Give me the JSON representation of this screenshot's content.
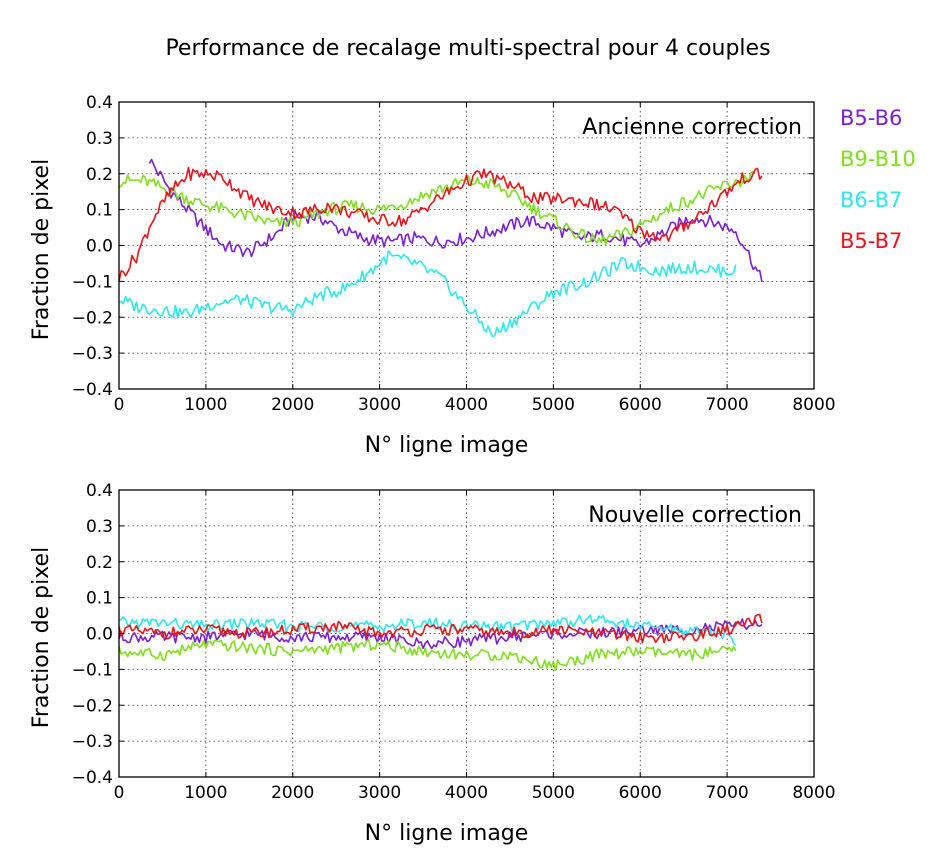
{
  "title": "Performance de recalage multi-spectral pour 4 couples",
  "legend": [
    {
      "name": "B5-B6",
      "color": "#7a1fd1"
    },
    {
      "name": "B9-B10",
      "color": "#7fdf1f"
    },
    {
      "name": "B6-B7",
      "color": "#2ee8ee"
    },
    {
      "name": "B5-B7",
      "color": "#e8141a"
    }
  ],
  "chart_data": [
    {
      "type": "line",
      "annotation": "Ancienne correction",
      "xlabel": "N° ligne image",
      "ylabel": "Fraction de pixel",
      "xlim": [
        0,
        8000
      ],
      "ylim": [
        -0.4,
        0.4
      ],
      "xticks": [
        "0",
        "1000",
        "2000",
        "3000",
        "4000",
        "5000",
        "6000",
        "7000",
        "8000"
      ],
      "yticks": [
        "0.4",
        "0.3",
        "0.2",
        "0.1",
        "0.0",
        "−0.1",
        "−0.2",
        "−0.3",
        "−0.4"
      ],
      "grid": true,
      "series": [
        {
          "name": "B5-B6",
          "color": "#7a1fd1",
          "x": [
            350,
            600,
            900,
            1200,
            1500,
            1800,
            2000,
            2300,
            2500,
            2800,
            3100,
            3400,
            3700,
            4000,
            4300,
            4700,
            5000,
            5300,
            5600,
            6000,
            6300,
            6600,
            6900,
            7100,
            7200,
            7400
          ],
          "y": [
            0.24,
            0.15,
            0.07,
            0.0,
            -0.02,
            0.03,
            0.08,
            0.08,
            0.05,
            0.02,
            0.01,
            0.02,
            0.01,
            0.02,
            0.04,
            0.07,
            0.05,
            0.02,
            0.03,
            0.0,
            0.04,
            0.08,
            0.06,
            0.04,
            0.0,
            -0.1
          ]
        },
        {
          "name": "B9-B10",
          "color": "#7fdf1f",
          "x": [
            0,
            300,
            600,
            900,
            1200,
            1500,
            1800,
            2100,
            2400,
            2700,
            3000,
            3300,
            3600,
            4000,
            4300,
            4600,
            5000,
            5300,
            5500,
            5800,
            6100,
            6400,
            6700,
            7000,
            7300
          ],
          "y": [
            0.18,
            0.18,
            0.15,
            0.12,
            0.1,
            0.08,
            0.06,
            0.07,
            0.1,
            0.11,
            0.1,
            0.12,
            0.15,
            0.18,
            0.17,
            0.13,
            0.07,
            0.03,
            0.01,
            0.03,
            0.07,
            0.11,
            0.14,
            0.17,
            0.19
          ]
        },
        {
          "name": "B6-B7",
          "color": "#2ee8ee",
          "x": [
            0,
            200,
            500,
            800,
            1100,
            1400,
            1700,
            2000,
            2300,
            2600,
            2900,
            3100,
            3400,
            3700,
            4000,
            4300,
            4600,
            5000,
            5400,
            5800,
            6200,
            6600,
            6900,
            7100
          ],
          "y": [
            -0.15,
            -0.17,
            -0.18,
            -0.19,
            -0.16,
            -0.15,
            -0.17,
            -0.18,
            -0.14,
            -0.12,
            -0.07,
            -0.03,
            -0.05,
            -0.09,
            -0.17,
            -0.25,
            -0.2,
            -0.13,
            -0.1,
            -0.05,
            -0.07,
            -0.06,
            -0.07,
            -0.07
          ]
        },
        {
          "name": "B5-B7",
          "color": "#e8141a",
          "x": [
            0,
            200,
            400,
            600,
            800,
            1000,
            1200,
            1500,
            1800,
            2100,
            2400,
            2700,
            3000,
            3300,
            3600,
            4000,
            4200,
            4500,
            4800,
            5100,
            5400,
            5700,
            6000,
            6300,
            6600,
            6900,
            7200,
            7400
          ],
          "y": [
            -0.09,
            -0.03,
            0.08,
            0.15,
            0.2,
            0.2,
            0.19,
            0.13,
            0.1,
            0.09,
            0.11,
            0.09,
            0.07,
            0.07,
            0.12,
            0.18,
            0.2,
            0.17,
            0.13,
            0.13,
            0.12,
            0.1,
            0.04,
            0.02,
            0.07,
            0.13,
            0.19,
            0.2
          ]
        }
      ]
    },
    {
      "type": "line",
      "annotation": "Nouvelle correction",
      "xlabel": "N° ligne image",
      "ylabel": "Fraction de pixel",
      "xlim": [
        0,
        8000
      ],
      "ylim": [
        -0.4,
        0.4
      ],
      "xticks": [
        "0",
        "1000",
        "2000",
        "3000",
        "4000",
        "5000",
        "6000",
        "7000",
        "8000"
      ],
      "yticks": [
        "0.4",
        "0.3",
        "0.2",
        "0.1",
        "0.0",
        "−0.1",
        "−0.2",
        "−0.3",
        "−0.4"
      ],
      "grid": true,
      "series": [
        {
          "name": "B5-B6",
          "color": "#7a1fd1",
          "x": [
            0,
            500,
            1000,
            1500,
            2000,
            2500,
            3000,
            3500,
            4000,
            4500,
            5000,
            5500,
            6000,
            6500,
            7000,
            7400
          ],
          "y": [
            -0.01,
            -0.01,
            -0.01,
            0.0,
            -0.01,
            -0.01,
            -0.01,
            -0.03,
            -0.02,
            -0.01,
            0.0,
            0.0,
            0.01,
            0.01,
            0.02,
            0.03
          ]
        },
        {
          "name": "B9-B10",
          "color": "#7fdf1f",
          "x": [
            0,
            500,
            1000,
            1500,
            2000,
            2500,
            3000,
            3500,
            4000,
            4500,
            5000,
            5500,
            6000,
            6500,
            7000,
            7100
          ],
          "y": [
            -0.05,
            -0.06,
            -0.03,
            -0.04,
            -0.05,
            -0.04,
            -0.03,
            -0.05,
            -0.06,
            -0.06,
            -0.09,
            -0.06,
            -0.05,
            -0.06,
            -0.05,
            -0.05
          ]
        },
        {
          "name": "B6-B7",
          "color": "#2ee8ee",
          "x": [
            0,
            500,
            1000,
            1500,
            2000,
            2500,
            3000,
            3500,
            4000,
            4500,
            5000,
            5500,
            6000,
            6500,
            7000,
            7100
          ],
          "y": [
            0.03,
            0.03,
            0.02,
            0.03,
            0.02,
            0.02,
            0.02,
            0.03,
            0.02,
            0.02,
            0.03,
            0.04,
            0.02,
            0.01,
            0.0,
            -0.03
          ]
        },
        {
          "name": "B5-B7",
          "color": "#e8141a",
          "x": [
            0,
            500,
            1000,
            1500,
            2000,
            2500,
            3000,
            3500,
            4000,
            4500,
            5000,
            5500,
            6000,
            6500,
            7000,
            7400
          ],
          "y": [
            0.01,
            0.0,
            0.01,
            0.0,
            0.01,
            0.02,
            0.0,
            0.01,
            0.01,
            0.0,
            0.01,
            0.0,
            -0.01,
            -0.01,
            0.01,
            0.04
          ]
        }
      ]
    }
  ]
}
